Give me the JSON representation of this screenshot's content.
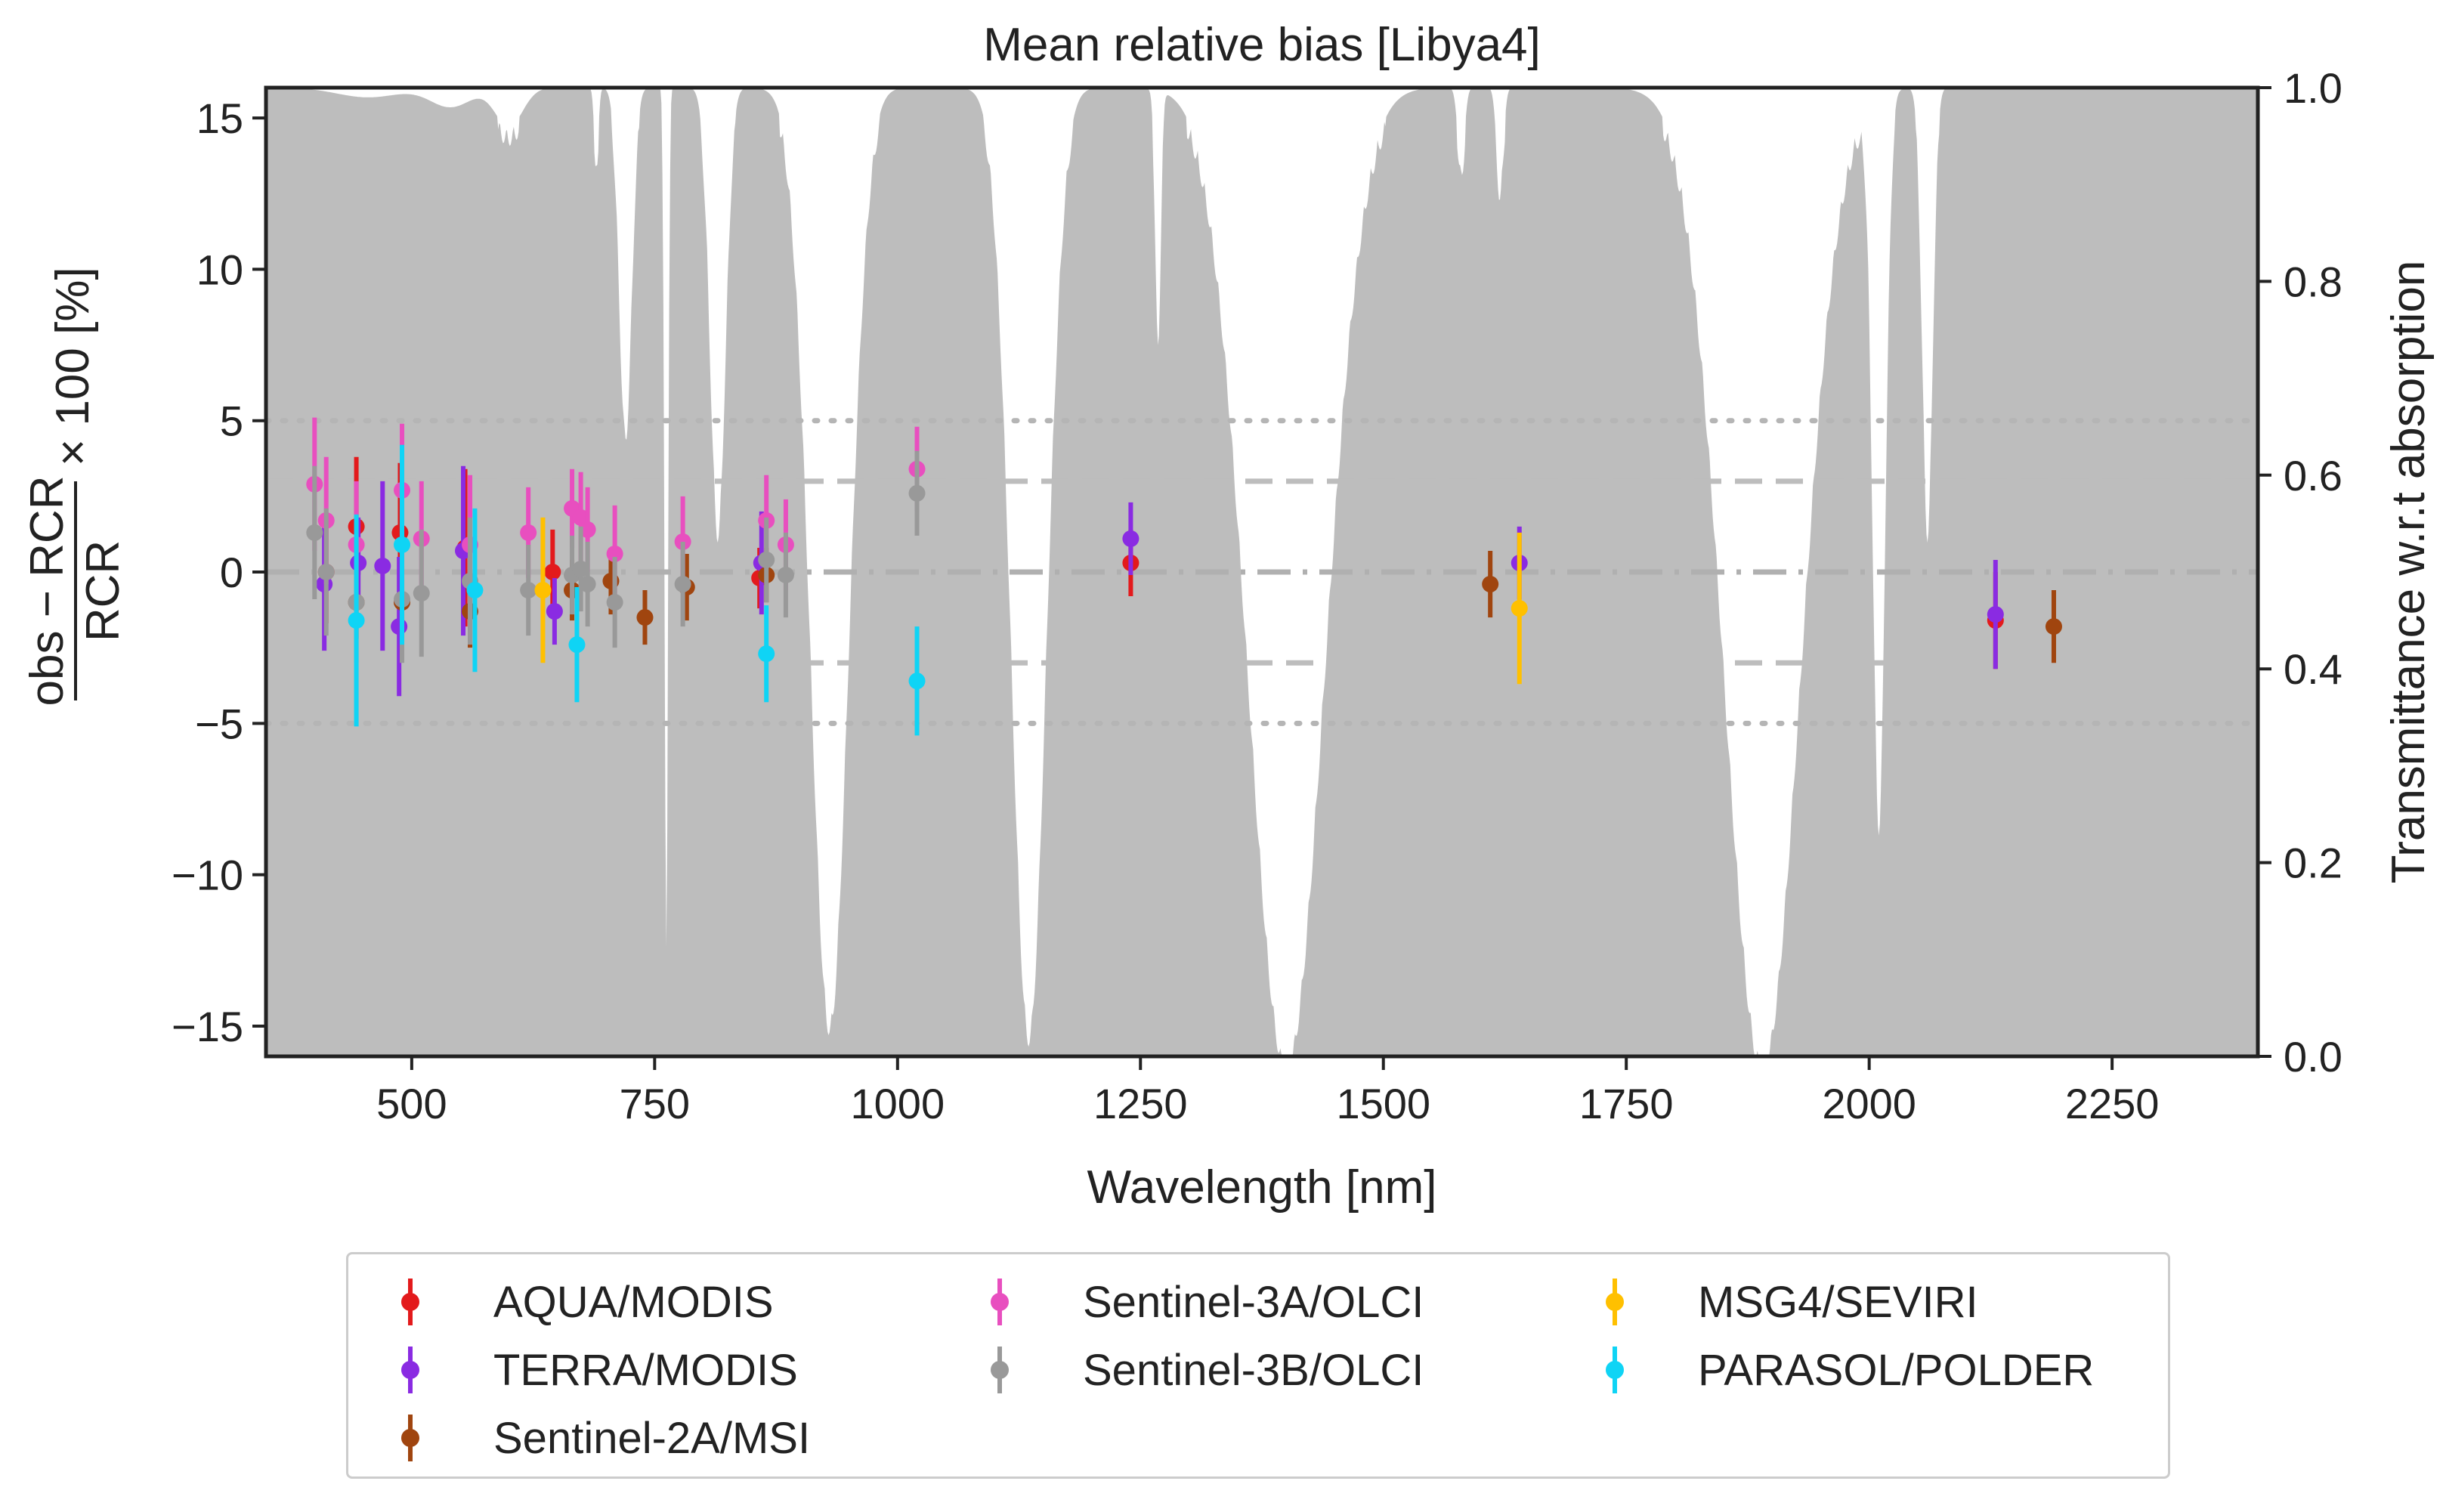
{
  "chart_data": {
    "type": "scatter",
    "title": "Mean relative bias [Libya4]",
    "xlabel": "Wavelength [nm]",
    "ylabel": "(obs − RCR) / RCR × 100 [%]",
    "ylabel_parts": {
      "numerator": "obs − RCR",
      "denominator": "RCR",
      "suffix": "× 100 [%]"
    },
    "y2label": "Transmittance w.r.t absorption",
    "xlim": [
      350,
      2400
    ],
    "ylim": [
      -16,
      16
    ],
    "y2lim": [
      0.0,
      1.0
    ],
    "xticks": [
      500,
      750,
      1000,
      1250,
      1500,
      1750,
      2000,
      2250
    ],
    "yticks": [
      -15,
      -10,
      -5,
      0,
      5,
      10,
      15
    ],
    "yticklabels": [
      "−15",
      "−10",
      "−5",
      "0",
      "5",
      "10",
      "15"
    ],
    "y2ticks": [
      0.0,
      0.2,
      0.4,
      0.6,
      0.8,
      1.0
    ],
    "y2ticklabels": [
      "0.0",
      "0.2",
      "0.4",
      "0.6",
      "0.8",
      "1.0"
    ],
    "reference_lines": [
      {
        "y": 5,
        "style": "dotted"
      },
      {
        "y": -5,
        "style": "dotted"
      },
      {
        "y": 3,
        "style": "dashed"
      },
      {
        "y": -3,
        "style": "dashed"
      },
      {
        "y": 0,
        "style": "dashdot"
      }
    ],
    "transmittance_bands": [
      {
        "center": 455,
        "width": 90,
        "depth": 0.01
      },
      {
        "center": 540,
        "width": 60,
        "depth": 0.02
      },
      {
        "center": 600,
        "width": 40,
        "depth": 0.04
      },
      {
        "center": 690,
        "width": 6,
        "depth": 0.08
      },
      {
        "center": 720,
        "width": 18,
        "depth": 0.35
      },
      {
        "center": 762,
        "width": 5,
        "depth": 0.88
      },
      {
        "center": 815,
        "width": 22,
        "depth": 0.45
      },
      {
        "center": 930,
        "width": 55,
        "depth": 0.96
      },
      {
        "center": 1135,
        "width": 50,
        "depth": 0.97
      },
      {
        "center": 1268,
        "width": 8,
        "depth": 0.25
      },
      {
        "center": 1400,
        "width": 110,
        "depth": 1.0
      },
      {
        "center": 1580,
        "width": 10,
        "depth": 0.08
      },
      {
        "center": 1620,
        "width": 10,
        "depth": 0.1
      },
      {
        "center": 1890,
        "width": 110,
        "depth": 1.0
      },
      {
        "center": 2010,
        "width": 18,
        "depth": 0.75
      },
      {
        "center": 2060,
        "width": 15,
        "depth": 0.45
      }
    ],
    "series": [
      {
        "name": "AQUA/MODIS",
        "color": "#e31a1c",
        "points": [
          {
            "x": 412,
            "y": 0.0,
            "e": 1.7
          },
          {
            "x": 443,
            "y": 1.5,
            "e": 2.3
          },
          {
            "x": 488,
            "y": 1.3,
            "e": 2.3
          },
          {
            "x": 555,
            "y": 0.8,
            "e": 2.6
          },
          {
            "x": 645,
            "y": 0.0,
            "e": 1.4
          },
          {
            "x": 858,
            "y": -0.2,
            "e": 1.0
          },
          {
            "x": 1240,
            "y": 0.3,
            "e": 1.1
          },
          {
            "x": 2130,
            "y": -1.6,
            "e": 1.6
          }
        ]
      },
      {
        "name": "TERRA/MODIS",
        "color": "#8a2be2",
        "points": [
          {
            "x": 410,
            "y": -0.4,
            "e": 2.2
          },
          {
            "x": 445,
            "y": 0.3,
            "e": 1.5
          },
          {
            "x": 470,
            "y": 0.2,
            "e": 2.8
          },
          {
            "x": 487,
            "y": -1.8,
            "e": 2.3
          },
          {
            "x": 553,
            "y": 0.7,
            "e": 2.8
          },
          {
            "x": 647,
            "y": -1.3,
            "e": 1.1
          },
          {
            "x": 860,
            "y": 0.3,
            "e": 1.7
          },
          {
            "x": 1240,
            "y": 1.1,
            "e": 1.2
          },
          {
            "x": 1640,
            "y": 0.3,
            "e": 1.2
          },
          {
            "x": 2130,
            "y": -1.4,
            "e": 1.8
          }
        ]
      },
      {
        "name": "Sentinel-2A/MSI",
        "color": "#a0450f",
        "points": [
          {
            "x": 443,
            "y": -1.0,
            "e": 1.2
          },
          {
            "x": 490,
            "y": -1.0,
            "e": 1.2
          },
          {
            "x": 560,
            "y": -1.3,
            "e": 1.2
          },
          {
            "x": 665,
            "y": -0.6,
            "e": 1.0
          },
          {
            "x": 705,
            "y": -0.3,
            "e": 1.1
          },
          {
            "x": 740,
            "y": -1.5,
            "e": 0.9
          },
          {
            "x": 783,
            "y": -0.5,
            "e": 1.1
          },
          {
            "x": 865,
            "y": -0.1,
            "e": 0.9
          },
          {
            "x": 1610,
            "y": -0.4,
            "e": 1.1
          },
          {
            "x": 2190,
            "y": -1.8,
            "e": 1.2
          }
        ]
      },
      {
        "name": "Sentinel-3A/OLCI",
        "color": "#e84fbf",
        "points": [
          {
            "x": 400,
            "y": 2.9,
            "e": 2.2
          },
          {
            "x": 412,
            "y": 1.7,
            "e": 2.1
          },
          {
            "x": 443,
            "y": 0.9,
            "e": 2.1
          },
          {
            "x": 490,
            "y": 2.7,
            "e": 2.2
          },
          {
            "x": 510,
            "y": 1.1,
            "e": 1.9
          },
          {
            "x": 560,
            "y": 0.9,
            "e": 2.3
          },
          {
            "x": 620,
            "y": 1.3,
            "e": 1.5
          },
          {
            "x": 665,
            "y": 2.1,
            "e": 1.3
          },
          {
            "x": 674,
            "y": 1.8,
            "e": 1.5
          },
          {
            "x": 681,
            "y": 1.4,
            "e": 1.4
          },
          {
            "x": 709,
            "y": 0.6,
            "e": 1.6
          },
          {
            "x": 779,
            "y": 1.0,
            "e": 1.5
          },
          {
            "x": 865,
            "y": 1.7,
            "e": 1.5
          },
          {
            "x": 885,
            "y": 0.9,
            "e": 1.5
          },
          {
            "x": 1020,
            "y": 3.4,
            "e": 1.4
          }
        ]
      },
      {
        "name": "Sentinel-3B/OLCI",
        "color": "#999999",
        "points": [
          {
            "x": 400,
            "y": 1.3,
            "e": 2.2
          },
          {
            "x": 412,
            "y": 0.0,
            "e": 2.1
          },
          {
            "x": 443,
            "y": -1.0,
            "e": 2.0
          },
          {
            "x": 490,
            "y": -0.9,
            "e": 2.1
          },
          {
            "x": 510,
            "y": -0.7,
            "e": 2.1
          },
          {
            "x": 560,
            "y": -0.3,
            "e": 2.1
          },
          {
            "x": 620,
            "y": -0.6,
            "e": 1.5
          },
          {
            "x": 665,
            "y": -0.1,
            "e": 1.3
          },
          {
            "x": 674,
            "y": 0.1,
            "e": 1.4
          },
          {
            "x": 681,
            "y": -0.4,
            "e": 1.4
          },
          {
            "x": 709,
            "y": -1.0,
            "e": 1.5
          },
          {
            "x": 779,
            "y": -0.4,
            "e": 1.4
          },
          {
            "x": 865,
            "y": 0.4,
            "e": 1.4
          },
          {
            "x": 885,
            "y": -0.1,
            "e": 1.4
          },
          {
            "x": 1020,
            "y": 2.6,
            "e": 1.4
          }
        ]
      },
      {
        "name": "MSG4/SEVIRI",
        "color": "#ffc000",
        "points": [
          {
            "x": 635,
            "y": -0.6,
            "e": 2.4
          },
          {
            "x": 1640,
            "y": -1.2,
            "e": 2.5
          }
        ]
      },
      {
        "name": "PARASOL/POLDER",
        "color": "#0fd4f5",
        "points": [
          {
            "x": 443,
            "y": -1.6,
            "e": 3.5
          },
          {
            "x": 490,
            "y": 0.9,
            "e": 3.3
          },
          {
            "x": 565,
            "y": -0.6,
            "e": 2.7
          },
          {
            "x": 670,
            "y": -2.4,
            "e": 1.9
          },
          {
            "x": 865,
            "y": -2.7,
            "e": 1.6
          },
          {
            "x": 1020,
            "y": -3.6,
            "e": 1.8
          }
        ]
      }
    ]
  },
  "legend": {
    "columns": [
      [
        "AQUA/MODIS",
        "TERRA/MODIS",
        "Sentinel-2A/MSI"
      ],
      [
        "Sentinel-3A/OLCI",
        "Sentinel-3B/OLCI"
      ],
      [
        "MSG4/SEVIRI",
        "PARASOL/POLDER"
      ]
    ]
  }
}
